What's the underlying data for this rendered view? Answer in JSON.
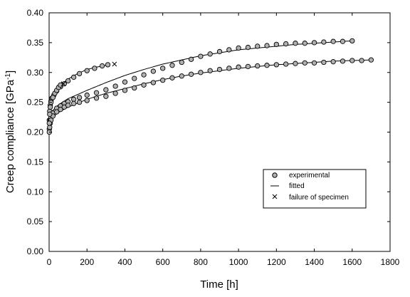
{
  "chart_data": {
    "type": "scatter",
    "title": "",
    "xlabel": "Time [h]",
    "ylabel": {
      "main": "Creep compliance [GPa",
      "sup": "-1",
      "close": "]"
    },
    "xlim": [
      0,
      1800
    ],
    "ylim": [
      0.0,
      0.4
    ],
    "xticks": [
      0,
      200,
      400,
      600,
      800,
      1000,
      1200,
      1400,
      1600,
      1800
    ],
    "yticks": [
      0.0,
      0.05,
      0.1,
      0.15,
      0.2,
      0.25,
      0.3,
      0.35,
      0.4
    ],
    "xtick_labels": [
      "0",
      "200",
      "400",
      "600",
      "800",
      "1000",
      "1200",
      "1400",
      "1600",
      "1800"
    ],
    "ytick_labels": [
      "0.00",
      "0.05",
      "0.10",
      "0.15",
      "0.20",
      "0.25",
      "0.30",
      "0.35",
      "0.40"
    ],
    "grid": false,
    "legend": {
      "position": "right",
      "entries": [
        {
          "label": "experimental",
          "marker": "circle"
        },
        {
          "label": "fitted",
          "marker": "line"
        },
        {
          "label": "failure of specimen",
          "marker": "x"
        }
      ]
    },
    "series": [
      {
        "kind": "experimental",
        "x": [
          1,
          3,
          6,
          10,
          15,
          25,
          40,
          60,
          80,
          100,
          130,
          160,
          200,
          240,
          280,
          310
        ],
        "y": [
          0.22,
          0.235,
          0.245,
          0.252,
          0.257,
          0.262,
          0.269,
          0.276,
          0.281,
          0.286,
          0.292,
          0.298,
          0.303,
          0.307,
          0.311,
          0.313
        ]
      },
      {
        "kind": "fitted",
        "x": [
          0,
          20,
          50,
          100,
          150,
          200,
          250,
          300
        ],
        "y": [
          0.225,
          0.262,
          0.276,
          0.289,
          0.298,
          0.305,
          0.309,
          0.312
        ]
      },
      {
        "kind": "experimental",
        "x": [
          1,
          3,
          6,
          10,
          20,
          40,
          60,
          80,
          100,
          130,
          160,
          200,
          250,
          300,
          350,
          400,
          450,
          500,
          550,
          600,
          650,
          700,
          750,
          800,
          850,
          900,
          950,
          1000,
          1050,
          1100,
          1150,
          1200,
          1250,
          1300,
          1350,
          1400,
          1450,
          1500,
          1550,
          1600
        ],
        "y": [
          0.205,
          0.214,
          0.22,
          0.225,
          0.232,
          0.24,
          0.244,
          0.248,
          0.251,
          0.255,
          0.258,
          0.262,
          0.266,
          0.271,
          0.277,
          0.284,
          0.29,
          0.296,
          0.302,
          0.307,
          0.312,
          0.317,
          0.322,
          0.327,
          0.331,
          0.335,
          0.338,
          0.341,
          0.342,
          0.344,
          0.345,
          0.347,
          0.348,
          0.349,
          0.349,
          0.35,
          0.351,
          0.352,
          0.352,
          0.353
        ]
      },
      {
        "kind": "fitted",
        "x": [
          0,
          50,
          100,
          200,
          300,
          400,
          500,
          600,
          700,
          800,
          900,
          1000,
          1100,
          1200,
          1300,
          1400,
          1500,
          1600
        ],
        "y": [
          0.23,
          0.246,
          0.256,
          0.27,
          0.283,
          0.295,
          0.305,
          0.314,
          0.321,
          0.328,
          0.333,
          0.338,
          0.341,
          0.344,
          0.347,
          0.349,
          0.351,
          0.353
        ]
      },
      {
        "kind": "experimental",
        "x": [
          1,
          3,
          6,
          10,
          20,
          40,
          60,
          80,
          100,
          130,
          160,
          200,
          250,
          300,
          350,
          400,
          450,
          500,
          550,
          600,
          650,
          700,
          750,
          800,
          850,
          900,
          950,
          1000,
          1050,
          1100,
          1150,
          1200,
          1250,
          1300,
          1350,
          1400,
          1450,
          1500,
          1550,
          1600,
          1650,
          1700
        ],
        "y": [
          0.2,
          0.208,
          0.215,
          0.22,
          0.227,
          0.234,
          0.238,
          0.242,
          0.245,
          0.248,
          0.25,
          0.253,
          0.257,
          0.26,
          0.265,
          0.27,
          0.274,
          0.279,
          0.283,
          0.287,
          0.291,
          0.294,
          0.297,
          0.3,
          0.303,
          0.305,
          0.307,
          0.309,
          0.31,
          0.311,
          0.312,
          0.313,
          0.314,
          0.315,
          0.316,
          0.316,
          0.317,
          0.318,
          0.319,
          0.32,
          0.32,
          0.321
        ]
      },
      {
        "kind": "fitted",
        "x": [
          0,
          50,
          100,
          200,
          300,
          400,
          500,
          600,
          700,
          800,
          900,
          1000,
          1100,
          1200,
          1300,
          1400,
          1500,
          1600,
          1700
        ],
        "y": [
          0.22,
          0.233,
          0.242,
          0.255,
          0.265,
          0.273,
          0.281,
          0.288,
          0.294,
          0.299,
          0.303,
          0.307,
          0.31,
          0.313,
          0.315,
          0.317,
          0.319,
          0.32,
          0.321
        ]
      },
      {
        "kind": "experimental",
        "x": [
          1,
          3,
          6,
          10,
          20,
          30,
          40,
          50,
          60
        ],
        "y": [
          0.215,
          0.23,
          0.242,
          0.25,
          0.258,
          0.265,
          0.27,
          0.275,
          0.279
        ]
      }
    ],
    "failures": [
      {
        "x": 75,
        "y": 0.281,
        "symbol": "x"
      },
      {
        "x": 345,
        "y": 0.314,
        "symbol": "x"
      }
    ]
  }
}
